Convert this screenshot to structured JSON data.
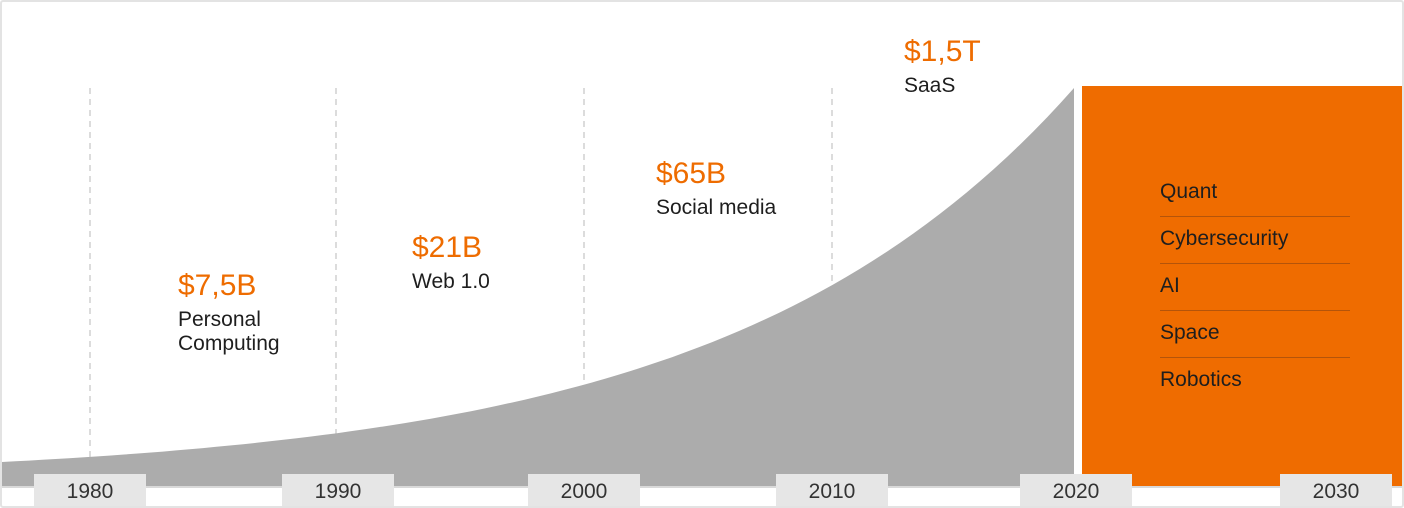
{
  "chart_data": {
    "type": "area",
    "x_ticks": [
      "1980",
      "1990",
      "2000",
      "2010",
      "2020",
      "2030"
    ],
    "eras": [
      {
        "value": "$7,5B",
        "label": "Personal Computing"
      },
      {
        "value": "$21B",
        "label": "Web 1.0"
      },
      {
        "value": "$65B",
        "label": "Social media"
      },
      {
        "value": "$1,5T",
        "label": "SaaS"
      }
    ],
    "future_sectors": [
      "Quant",
      "Cybersecurity",
      "AI",
      "Space",
      "Robotics"
    ],
    "grid": "vertical dashed at each decade",
    "colors": {
      "area": "#acacac",
      "accent": "#ef6c00",
      "text": "#1e1e1e"
    }
  }
}
